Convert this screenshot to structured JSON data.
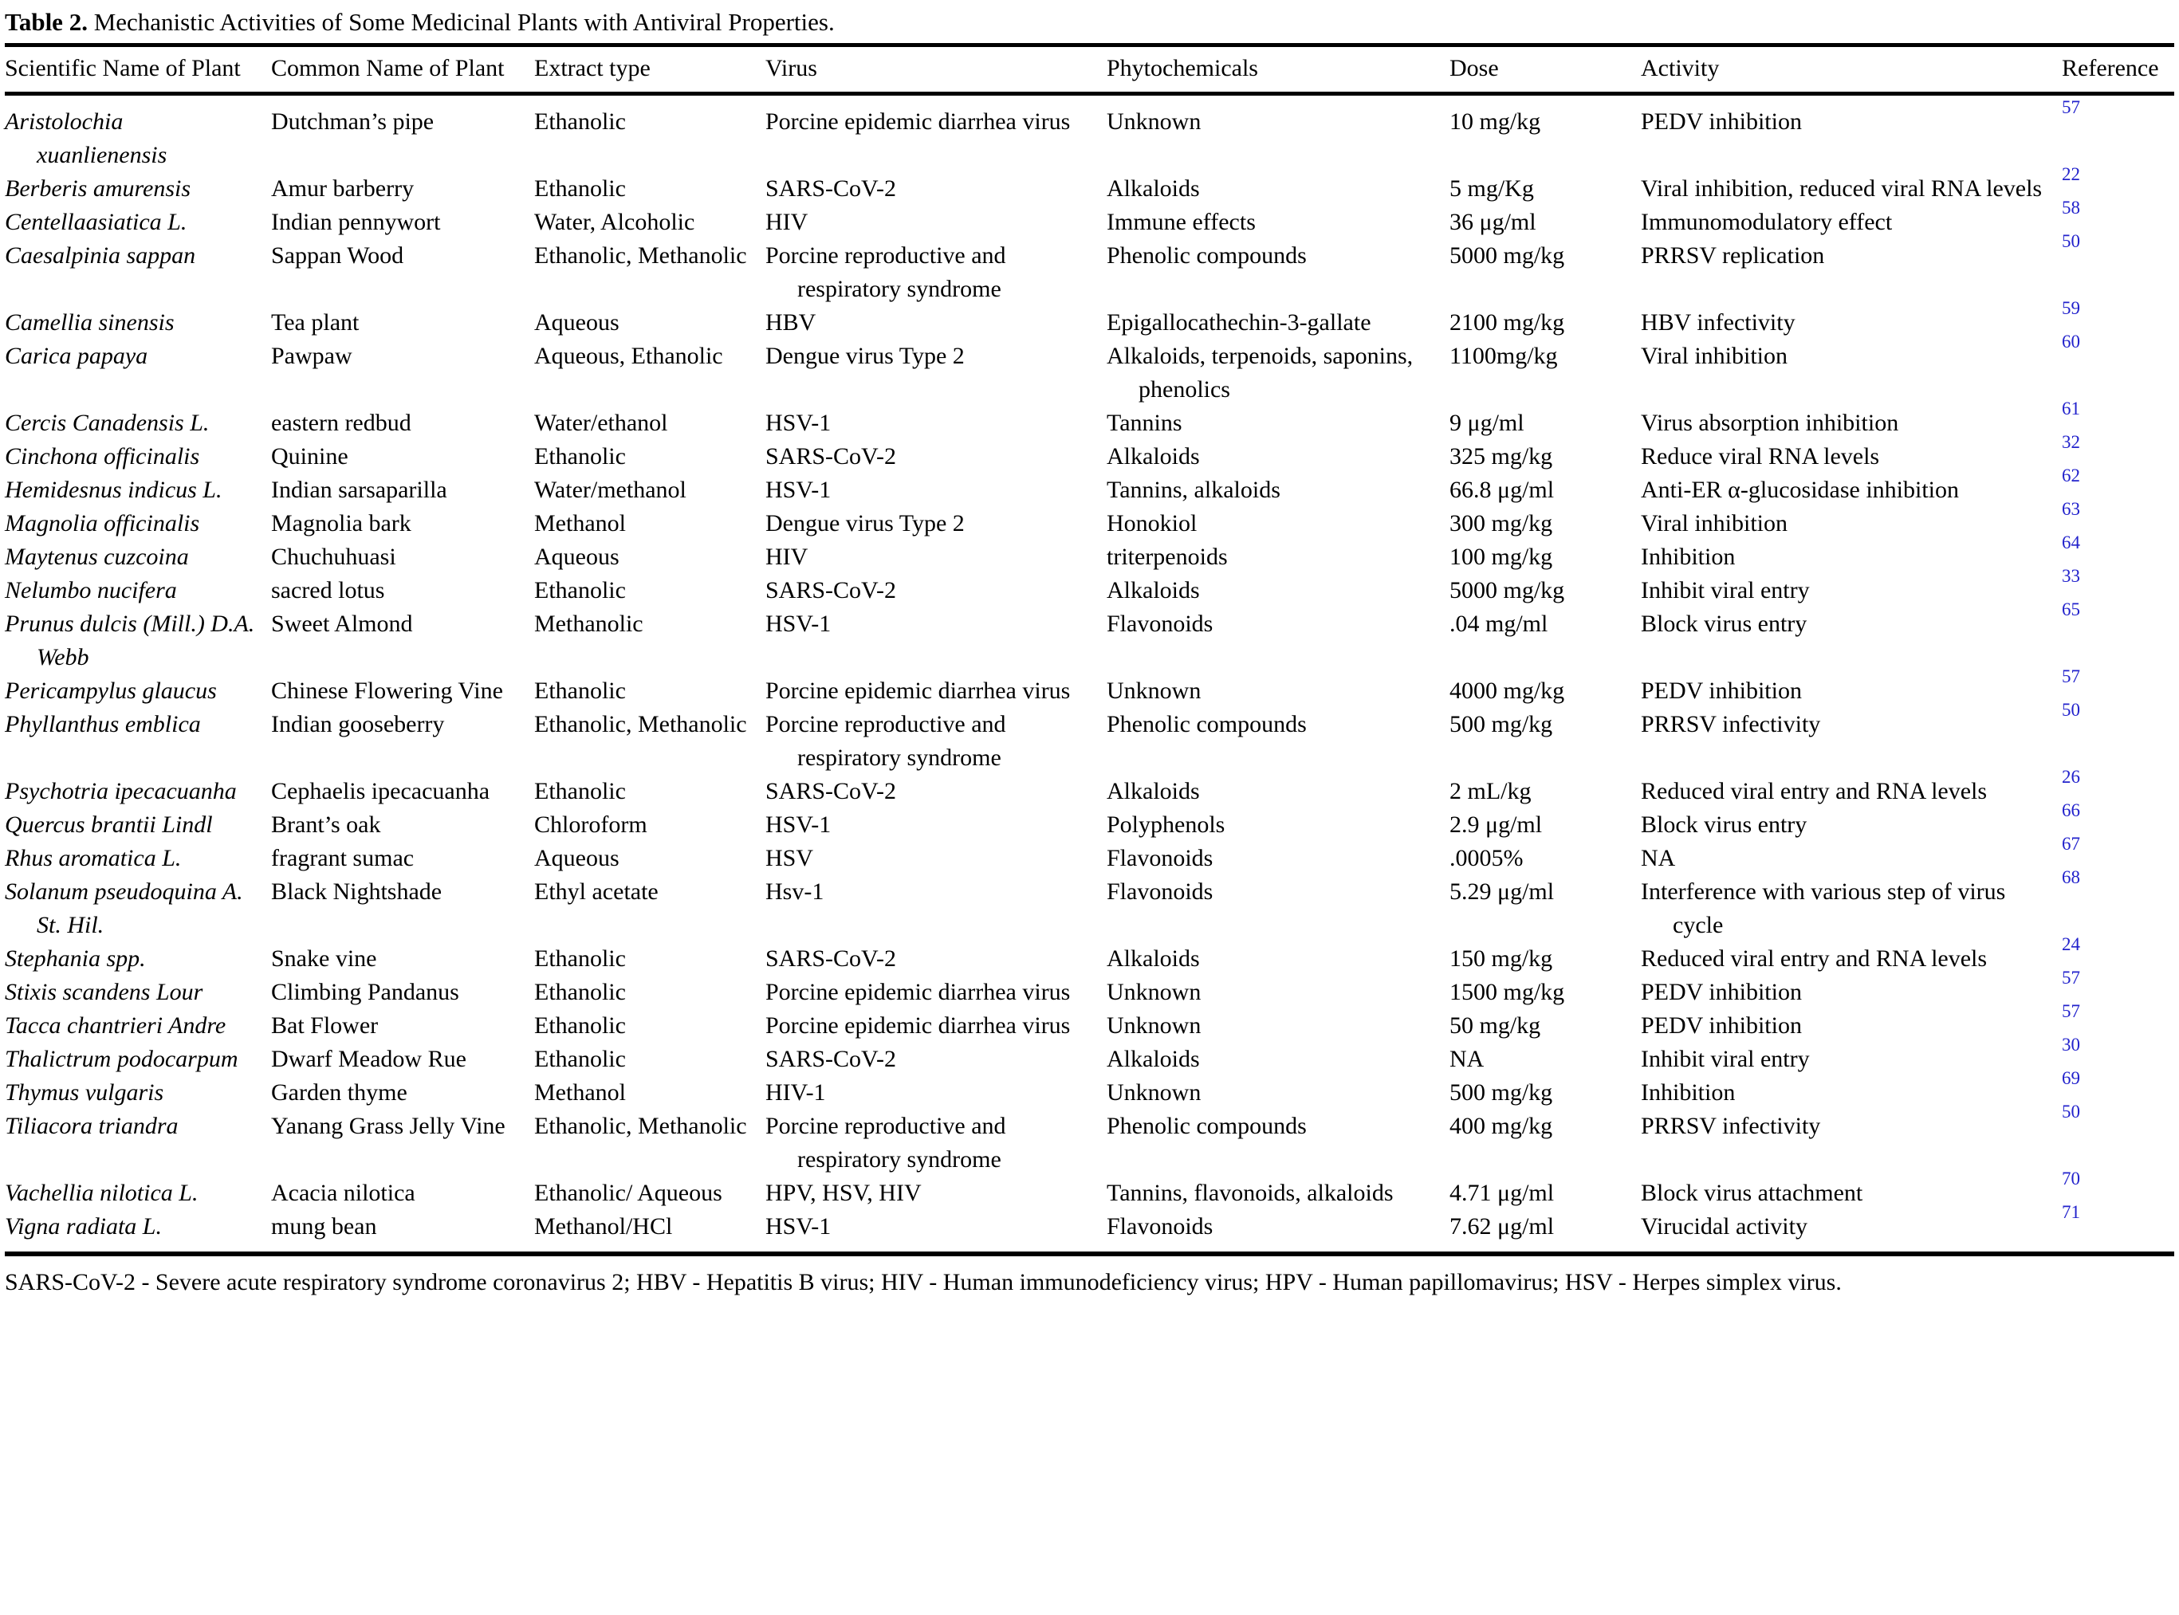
{
  "title": {
    "label": "Table 2.",
    "text": "Mechanistic Activities of Some Medicinal Plants with Antiviral Properties."
  },
  "colors": {
    "reference_link": "#2222cc",
    "text": "#000000",
    "background": "#ffffff"
  },
  "table": {
    "columns": [
      "Scientific Name of Plant",
      "Common Name of Plant",
      "Extract type",
      "Virus",
      "Phytochemicals",
      "Dose",
      "Activity",
      "Reference"
    ],
    "rows": [
      {
        "scientific": "Aristolochia xuanlienensis",
        "common": "Dutchman’s pipe",
        "extract": "Ethanolic",
        "virus": "Porcine epidemic diarrhea virus",
        "phytochemicals": "Unknown",
        "dose": "10 mg/kg",
        "activity": "PEDV inhibition",
        "reference": "57"
      },
      {
        "scientific": "Berberis amurensis",
        "common": "Amur barberry",
        "extract": "Ethanolic",
        "virus": "SARS-CoV-2",
        "phytochemicals": "Alkaloids",
        "dose": "5 mg/Kg",
        "activity": "Viral inhibition, reduced viral RNA levels",
        "reference": "22"
      },
      {
        "scientific": "Centellaasiatica L.",
        "common": "Indian pennywort",
        "extract": "Water, Alcoholic",
        "virus": "HIV",
        "phytochemicals": "Immune effects",
        "dose": "36 μg/ml",
        "activity": "Immunomodulatory effect",
        "reference": "58"
      },
      {
        "scientific": "Caesalpinia sappan",
        "common": "Sappan Wood",
        "extract": "Ethanolic, Methanolic",
        "virus": "Porcine reproductive and respiratory syndrome",
        "phytochemicals": "Phenolic compounds",
        "dose": "5000 mg/kg",
        "activity": "PRRSV replication",
        "reference": "50"
      },
      {
        "scientific": "Camellia sinensis",
        "common": "Tea plant",
        "extract": "Aqueous",
        "virus": "HBV",
        "phytochemicals": "Epigallocathechin-3-gallate",
        "dose": "2100 mg/kg",
        "activity": "HBV infectivity",
        "reference": "59"
      },
      {
        "scientific": "Carica papaya",
        "common": "Pawpaw",
        "extract": "Aqueous, Ethanolic",
        "virus": "Dengue virus Type 2",
        "phytochemicals": "Alkaloids, terpenoids, saponins, phenolics",
        "dose": "1100mg/kg",
        "activity": "Viral inhibition",
        "reference": "60"
      },
      {
        "scientific": "Cercis Canadensis L.",
        "common": "eastern redbud",
        "extract": "Water/ethanol",
        "virus": "HSV-1",
        "phytochemicals": "Tannins",
        "dose": "9 μg/ml",
        "activity": "Virus absorption inhibition",
        "reference": "61"
      },
      {
        "scientific": "Cinchona officinalis",
        "common": "Quinine",
        "extract": "Ethanolic",
        "virus": "SARS-CoV-2",
        "phytochemicals": "Alkaloids",
        "dose": "325 mg/kg",
        "activity": "Reduce viral RNA levels",
        "reference": "32"
      },
      {
        "scientific": "Hemidesnus indicus L.",
        "common": "Indian sarsaparilla",
        "extract": "Water/methanol",
        "virus": "HSV-1",
        "phytochemicals": "Tannins, alkaloids",
        "dose": "66.8 μg/ml",
        "activity": "Anti-ER α-glucosidase inhibition",
        "reference": "62"
      },
      {
        "scientific": "Magnolia officinalis",
        "common": "Magnolia bark",
        "extract": "Methanol",
        "virus": "Dengue virus Type 2",
        "phytochemicals": "Honokiol",
        "dose": "300 mg/kg",
        "activity": "Viral inhibition",
        "reference": "63"
      },
      {
        "scientific": "Maytenus cuzcoina",
        "common": "Chuchuhuasi",
        "extract": "Aqueous",
        "virus": "HIV",
        "phytochemicals": "triterpenoids",
        "dose": "100 mg/kg",
        "activity": "Inhibition",
        "reference": "64"
      },
      {
        "scientific": "Nelumbo nucifera",
        "common": "sacred lotus",
        "extract": "Ethanolic",
        "virus": "SARS-CoV-2",
        "phytochemicals": "Alkaloids",
        "dose": "5000 mg/kg",
        "activity": "Inhibit viral entry",
        "reference": "33"
      },
      {
        "scientific": "Prunus dulcis (Mill.) D.A. Webb",
        "common": "Sweet Almond",
        "extract": "Methanolic",
        "virus": "HSV-1",
        "phytochemicals": "Flavonoids",
        "dose": ".04 mg/ml",
        "activity": "Block virus entry",
        "reference": "65"
      },
      {
        "scientific": "Pericampylus glaucus",
        "common": "Chinese Flowering Vine",
        "extract": "Ethanolic",
        "virus": "Porcine epidemic diarrhea virus",
        "phytochemicals": "Unknown",
        "dose": "4000 mg/kg",
        "activity": "PEDV inhibition",
        "reference": "57"
      },
      {
        "scientific": "Phyllanthus emblica",
        "common": "Indian gooseberry",
        "extract": "Ethanolic, Methanolic",
        "virus": "Porcine reproductive and respiratory syndrome",
        "phytochemicals": "Phenolic compounds",
        "dose": "500 mg/kg",
        "activity": "PRRSV infectivity",
        "reference": "50"
      },
      {
        "scientific": "Psychotria ipecacuanha",
        "common": "Cephaelis ipecacuanha",
        "extract": "Ethanolic",
        "virus": "SARS-CoV-2",
        "phytochemicals": "Alkaloids",
        "dose": "2 mL/kg",
        "activity": "Reduced viral entry and RNA levels",
        "reference": "26"
      },
      {
        "scientific": "Quercus brantii Lindl",
        "common": "Brant’s oak",
        "extract": "Chloroform",
        "virus": "HSV-1",
        "phytochemicals": "Polyphenols",
        "dose": "2.9 μg/ml",
        "activity": "Block virus entry",
        "reference": "66"
      },
      {
        "scientific": "Rhus aromatica L.",
        "common": "fragrant sumac",
        "extract": "Aqueous",
        "virus": "HSV",
        "phytochemicals": "Flavonoids",
        "dose": ".0005%",
        "activity": "NA",
        "reference": "67"
      },
      {
        "scientific": "Solanum pseudoquina A. St. Hil.",
        "common": "Black Nightshade",
        "extract": "Ethyl acetate",
        "virus": "Hsv-1",
        "phytochemicals": "Flavonoids",
        "dose": "5.29 μg/ml",
        "activity": "Interference with various step of virus cycle",
        "reference": "68"
      },
      {
        "scientific": "Stephania spp.",
        "common": "Snake vine",
        "extract": "Ethanolic",
        "virus": "SARS-CoV-2",
        "phytochemicals": "Alkaloids",
        "dose": "150 mg/kg",
        "activity": "Reduced viral entry and RNA levels",
        "reference": "24"
      },
      {
        "scientific": "Stixis scandens Lour",
        "common": "Climbing Pandanus",
        "extract": "Ethanolic",
        "virus": "Porcine epidemic diarrhea virus",
        "phytochemicals": "Unknown",
        "dose": "1500 mg/kg",
        "activity": "PEDV inhibition",
        "reference": "57"
      },
      {
        "scientific": "Tacca chantrieri Andre",
        "common": "Bat Flower",
        "extract": "Ethanolic",
        "virus": "Porcine epidemic diarrhea virus",
        "phytochemicals": "Unknown",
        "dose": "50 mg/kg",
        "activity": "PEDV inhibition",
        "reference": "57"
      },
      {
        "scientific": "Thalictrum podocarpum",
        "common": "Dwarf Meadow Rue",
        "extract": "Ethanolic",
        "virus": "SARS-CoV-2",
        "phytochemicals": "Alkaloids",
        "dose": "NA",
        "activity": "Inhibit viral entry",
        "reference": "30"
      },
      {
        "scientific": "Thymus vulgaris",
        "common": "Garden thyme",
        "extract": "Methanol",
        "virus": "HIV-1",
        "phytochemicals": "Unknown",
        "dose": "500 mg/kg",
        "activity": "Inhibition",
        "reference": "69"
      },
      {
        "scientific": "Tiliacora triandra",
        "common": "Yanang Grass Jelly Vine",
        "extract": "Ethanolic, Methanolic",
        "virus": "Porcine reproductive and respiratory syndrome",
        "phytochemicals": "Phenolic compounds",
        "dose": "400 mg/kg",
        "activity": "PRRSV infectivity",
        "reference": "50"
      },
      {
        "scientific": "Vachellia nilotica L.",
        "common": "Acacia nilotica",
        "extract": "Ethanolic/ Aqueous",
        "virus": "HPV, HSV, HIV",
        "phytochemicals": "Tannins, flavonoids, alkaloids",
        "dose": "4.71 μg/ml",
        "activity": "Block virus attachment",
        "reference": "70"
      },
      {
        "scientific": "Vigna radiata L.",
        "common": "mung bean",
        "extract": "Methanol/HCl",
        "virus": "HSV-1",
        "phytochemicals": "Flavonoids",
        "dose": "7.62 μg/ml",
        "activity": "Virucidal activity",
        "reference": "71"
      }
    ]
  },
  "footnote": "SARS-CoV-2 - Severe acute respiratory syndrome coronavirus 2; HBV - Hepatitis B virus; HIV - Human immunodeficiency virus; HPV - Human papillomavirus; HSV - Herpes simplex virus."
}
